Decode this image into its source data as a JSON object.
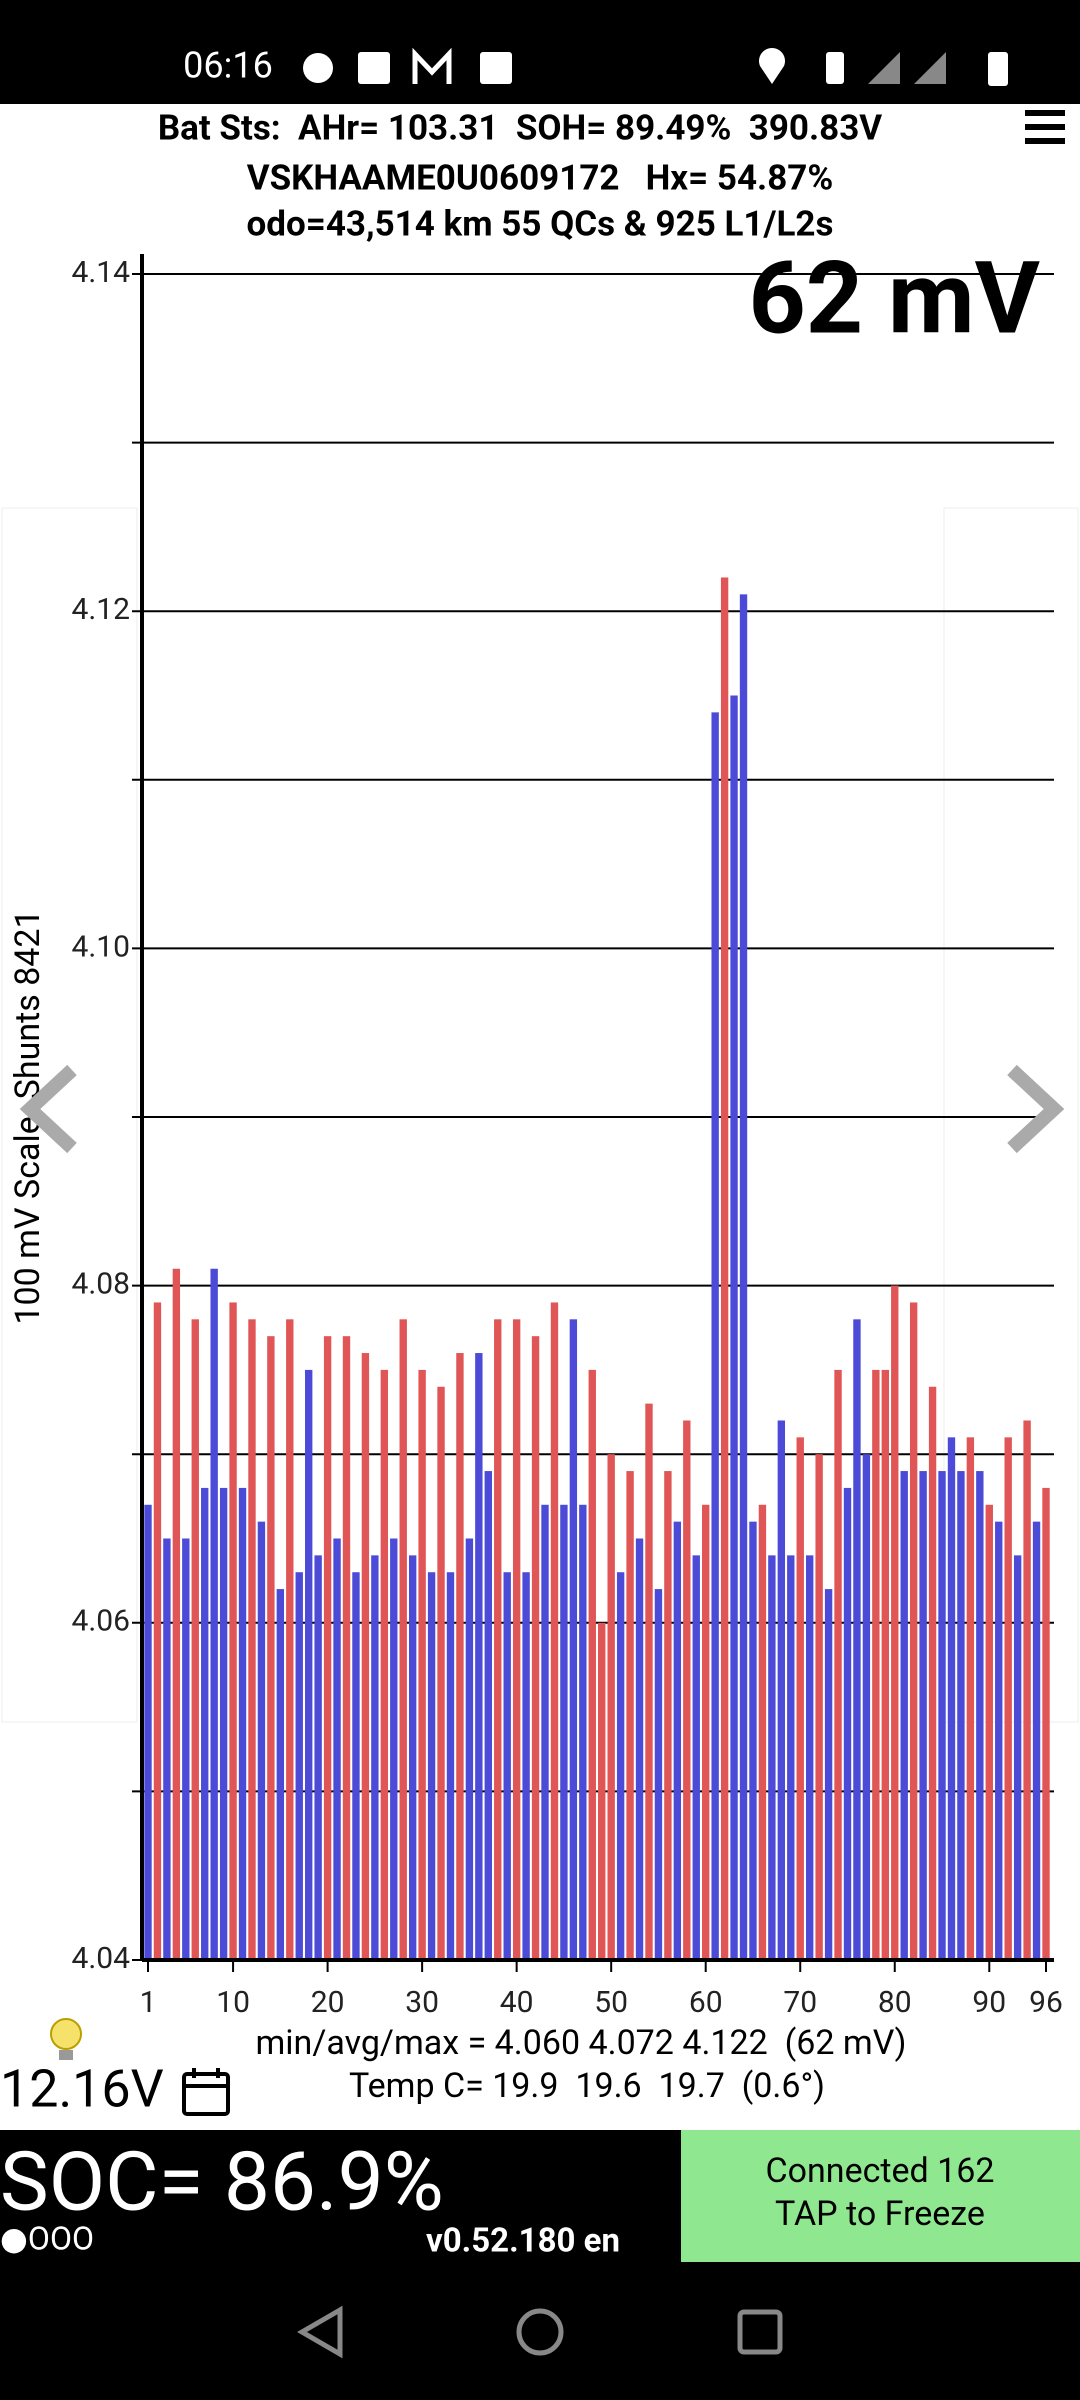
{
  "status_bar": {
    "time": "06:16"
  },
  "header": {
    "line1": "Bat Sts:  AHr= 103.31  SOH= 89.49%  390.83V",
    "line2": "VSKHAAME0U0609172   Hx= 54.87%",
    "line3": "odo=43,514 km 55 QCs & 925 L1/L2s"
  },
  "chart_data": {
    "type": "bar",
    "annotation": "62 mV",
    "y_label": "100 mV Scale  Shunts 8421",
    "x": [
      1,
      2,
      3,
      4,
      5,
      6,
      7,
      8,
      9,
      10,
      11,
      12,
      13,
      14,
      15,
      16,
      17,
      18,
      19,
      20,
      21,
      22,
      23,
      24,
      25,
      26,
      27,
      28,
      29,
      30,
      31,
      32,
      33,
      34,
      35,
      36,
      37,
      38,
      39,
      40,
      41,
      42,
      43,
      44,
      45,
      46,
      47,
      48,
      49,
      50,
      51,
      52,
      53,
      54,
      55,
      56,
      57,
      58,
      59,
      60,
      61,
      62,
      63,
      64,
      65,
      66,
      67,
      68,
      69,
      70,
      71,
      72,
      73,
      74,
      75,
      76,
      77,
      78,
      79,
      80,
      81,
      82,
      83,
      84,
      85,
      86,
      87,
      88,
      89,
      90,
      91,
      92,
      93,
      94,
      95,
      96
    ],
    "values": [
      4.067,
      4.079,
      4.065,
      4.081,
      4.065,
      4.078,
      4.068,
      4.081,
      4.068,
      4.079,
      4.068,
      4.078,
      4.066,
      4.077,
      4.062,
      4.078,
      4.063,
      4.075,
      4.064,
      4.077,
      4.065,
      4.077,
      4.063,
      4.076,
      4.064,
      4.075,
      4.065,
      4.078,
      4.064,
      4.075,
      4.063,
      4.074,
      4.063,
      4.076,
      4.065,
      4.076,
      4.069,
      4.078,
      4.063,
      4.078,
      4.063,
      4.077,
      4.067,
      4.079,
      4.067,
      4.078,
      4.067,
      4.075,
      4.06,
      4.07,
      4.063,
      4.069,
      4.065,
      4.073,
      4.062,
      4.069,
      4.066,
      4.072,
      4.064,
      4.067,
      4.114,
      4.122,
      4.115,
      4.121,
      4.066,
      4.067,
      4.064,
      4.072,
      4.064,
      4.071,
      4.064,
      4.07,
      4.062,
      4.075,
      4.068,
      4.078,
      4.07,
      4.075,
      4.075,
      4.08,
      4.069,
      4.079,
      4.069,
      4.074,
      4.069,
      4.071,
      4.069,
      4.071,
      4.069,
      4.067,
      4.066,
      4.071,
      4.064,
      4.072,
      4.066,
      4.068
    ],
    "colors": [
      "#4b4bd8",
      "#e05555",
      "#4b4bd8",
      "#e05555",
      "#4b4bd8",
      "#e05555",
      "#4b4bd8",
      "#4b4bd8",
      "#4b4bd8",
      "#e05555",
      "#4b4bd8",
      "#e05555",
      "#4b4bd8",
      "#e05555",
      "#4b4bd8",
      "#e05555",
      "#4b4bd8",
      "#4b4bd8",
      "#4b4bd8",
      "#e05555",
      "#4b4bd8",
      "#e05555",
      "#4b4bd8",
      "#e05555",
      "#4b4bd8",
      "#e05555",
      "#4b4bd8",
      "#e05555",
      "#4b4bd8",
      "#e05555",
      "#4b4bd8",
      "#e05555",
      "#4b4bd8",
      "#e05555",
      "#4b4bd8",
      "#4b4bd8",
      "#4b4bd8",
      "#e05555",
      "#4b4bd8",
      "#e05555",
      "#4b4bd8",
      "#e05555",
      "#4b4bd8",
      "#e05555",
      "#4b4bd8",
      "#4b4bd8",
      "#4b4bd8",
      "#e05555",
      "#e05555",
      "#e05555",
      "#4b4bd8",
      "#e05555",
      "#4b4bd8",
      "#e05555",
      "#4b4bd8",
      "#e05555",
      "#4b4bd8",
      "#e05555",
      "#4b4bd8",
      "#e05555",
      "#4b4bd8",
      "#e05555",
      "#4b4bd8",
      "#4b4bd8",
      "#4b4bd8",
      "#e05555",
      "#4b4bd8",
      "#4b4bd8",
      "#4b4bd8",
      "#e05555",
      "#4b4bd8",
      "#e05555",
      "#4b4bd8",
      "#e05555",
      "#4b4bd8",
      "#4b4bd8",
      "#4b4bd8",
      "#e05555",
      "#e05555",
      "#e05555",
      "#4b4bd8",
      "#e05555",
      "#4b4bd8",
      "#e05555",
      "#4b4bd8",
      "#4b4bd8",
      "#4b4bd8",
      "#e05555",
      "#4b4bd8",
      "#e05555",
      "#4b4bd8",
      "#e05555",
      "#4b4bd8",
      "#e05555",
      "#4b4bd8",
      "#e05555"
    ],
    "xlim": [
      1,
      96
    ],
    "xticks": [
      1,
      10,
      20,
      30,
      40,
      50,
      60,
      70,
      80,
      90,
      96
    ],
    "ylim": [
      4.04,
      4.14
    ],
    "yticks": [
      4.04,
      4.06,
      4.08,
      {
        "value": 4.1,
        "label": "4.10"
      },
      4.12,
      4.14
    ],
    "minor_yticks": [
      4.05,
      4.07,
      4.09,
      4.11,
      4.13
    ],
    "grid": true
  },
  "footer": {
    "stats": "min/avg/max = 4.060 4.072 4.122  (62 mV)",
    "temp": "Temp C= 19.9  19.6  19.7  (0.6°)",
    "aux_voltage": "12.16V",
    "soc": "SOC= 86.9%",
    "dots": "●OOO",
    "version": "v0.52.180 en",
    "button_line1": "Connected 162",
    "button_line2": "TAP to Freeze"
  }
}
